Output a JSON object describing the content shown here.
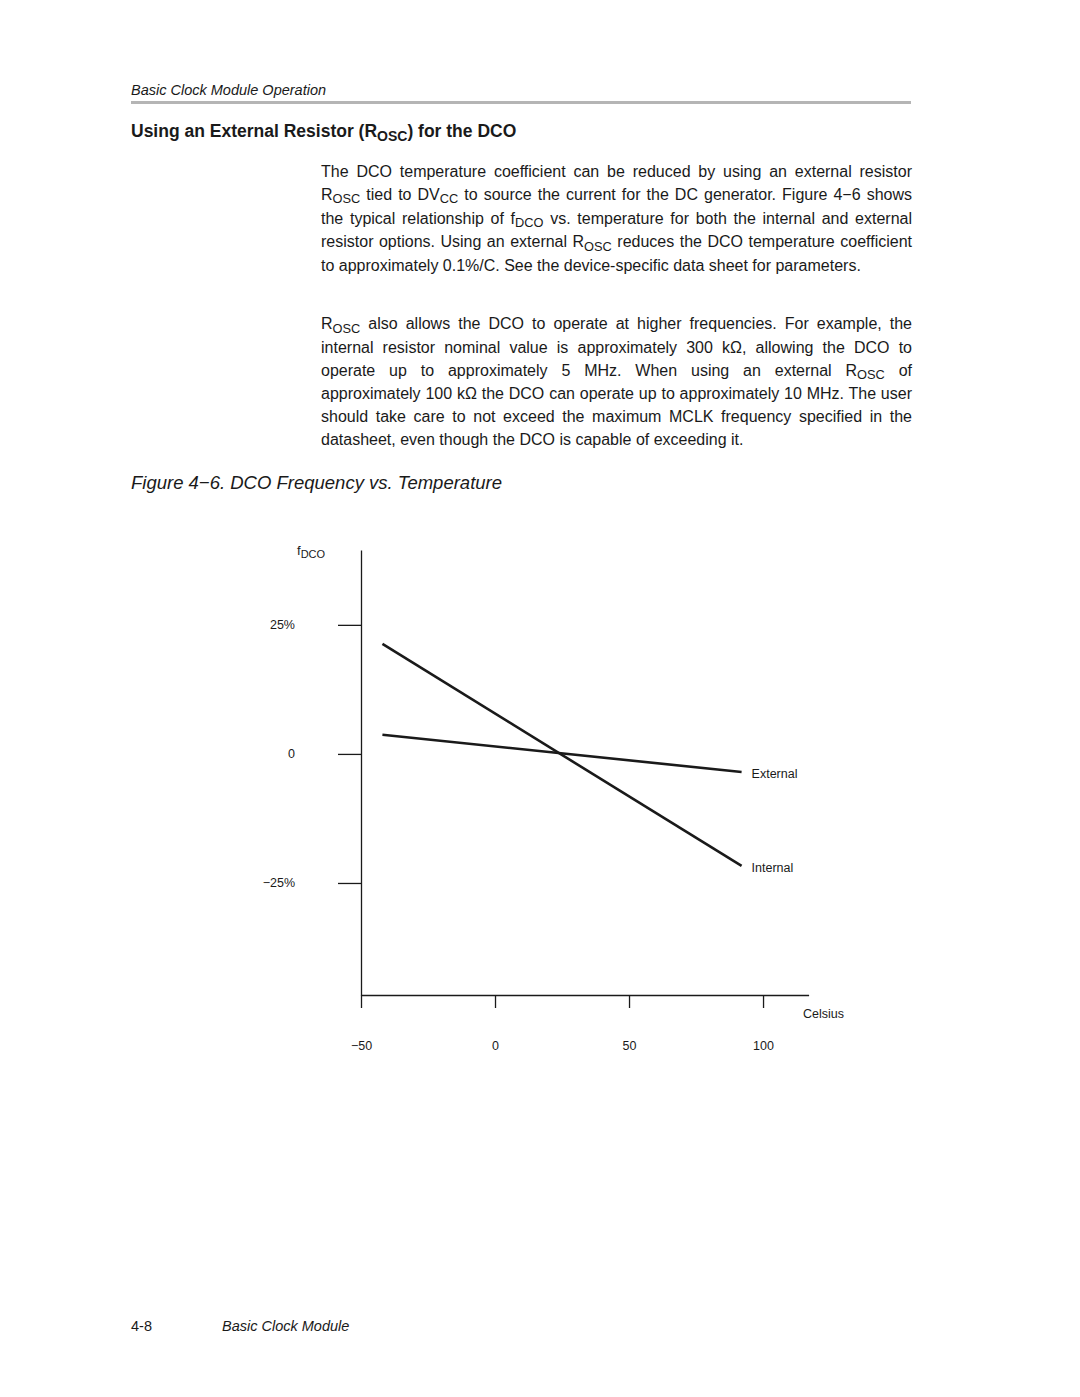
{
  "header": "Basic Clock Module Operation",
  "section_title": [
    "Using an External Resistor (R",
    {
      "sub": "OSC"
    },
    ") for the DCO"
  ],
  "paragraphs": [
    [
      "The DCO temperature coefficient can be reduced by using an external resistor R",
      {
        "sub": "OSC"
      },
      " tied to DV",
      {
        "sub": "CC"
      },
      " to source the current for the DC generator. Figure 4−6 shows the typical relationship of f",
      {
        "sub": "DCO"
      },
      " vs. temperature for both the internal and external resistor options. Using an external R",
      {
        "sub": "OSC"
      },
      " reduces the DCO temperature coefficient to approximately 0.1%/C. See the device-specific data sheet for parameters."
    ],
    [
      "R",
      {
        "sub": "OSC"
      },
      " also allows the DCO to operate at higher frequencies. For example, the internal resistor nominal value is approximately 300 kΩ, allowing the DCO to operate up to approximately 5 MHz. When using an external R",
      {
        "sub": "OSC"
      },
      " of approximately 100 kΩ the DCO can operate up to approximately 10 MHz. The user should take care to not exceed the maximum MCLK frequency specified in the datasheet, even though the DCO is capable of exceeding it."
    ]
  ],
  "caption": "Figure 4−6. DCO Frequency vs. Temperature",
  "chart_data": {
    "type": "line",
    "ylabel": [
      "f",
      {
        "sub": "DCO"
      }
    ],
    "xlabel": "Celsius",
    "x": [
      -42,
      92
    ],
    "series": [
      {
        "name": "External",
        "color": "#1a1a1a",
        "values": [
          3.7,
          -3.5
        ]
      },
      {
        "name": "Internal",
        "color": "#1a1a1a",
        "values": [
          21.3,
          -21.7
        ]
      }
    ],
    "xlim": [
      -50,
      117
    ],
    "xticks": [
      -50,
      0,
      50,
      100
    ],
    "ylim": [
      -46.7,
      39.5
    ],
    "yticks": [
      {
        "value": 25,
        "label": "25%"
      },
      0,
      {
        "value": -25,
        "label": "−25%"
      }
    ],
    "grid": false
  },
  "footer": {
    "page": "4-8",
    "title": "Basic Clock Module"
  }
}
